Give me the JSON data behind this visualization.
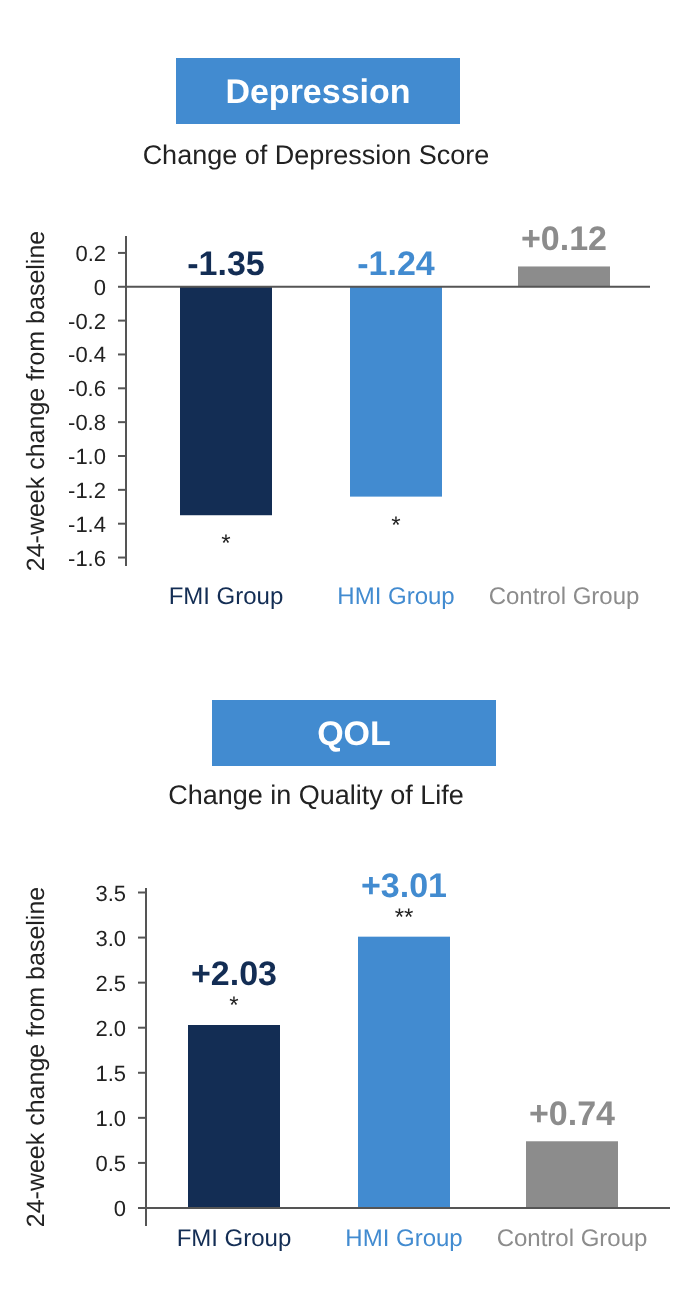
{
  "chart_data": [
    {
      "type": "bar",
      "title": "Depression",
      "subtitle": "Change of Depression Score",
      "ylabel": "24-week change from baseline",
      "categories": [
        "FMI Group",
        "HMI Group",
        "Control Group"
      ],
      "values": [
        -1.35,
        -1.24,
        0.12
      ],
      "colors": [
        "#132d54",
        "#428bd0",
        "#8c8c8c"
      ],
      "value_labels": [
        "-1.35",
        "-1.24",
        "+0.12"
      ],
      "ylim": [
        -1.65,
        0.3
      ],
      "yticks": [
        0.2,
        0,
        -0.2,
        -0.4,
        -0.6,
        -0.8,
        {
          "value": -1,
          "label": "-1.0"
        },
        -1.2,
        -1.4,
        -1.6
      ],
      "annotations": [
        {
          "text": "*",
          "x": "FMI Group",
          "y": -1.35
        },
        {
          "text": "*",
          "x": "HMI Group",
          "y": -1.24
        }
      ]
    },
    {
      "type": "bar",
      "title": "QOL",
      "subtitle": "Change in Quality of Life",
      "ylabel": "24-week change from baseline",
      "categories": [
        "FMI Group",
        "HMI Group",
        "Control Group"
      ],
      "values": [
        2.03,
        3.01,
        0.74
      ],
      "colors": [
        "#132d54",
        "#428bd0",
        "#8c8c8c"
      ],
      "value_labels": [
        "+2.03",
        "+3.01",
        "+0.74"
      ],
      "ylim": [
        -0.2,
        3.55
      ],
      "yticks": [
        0,
        0.5,
        {
          "value": 1,
          "label": "1.0"
        },
        1.5,
        {
          "value": 2,
          "label": "2.0"
        },
        2.5,
        {
          "value": 3,
          "label": "3.0"
        },
        3.5
      ],
      "annotations": [
        {
          "text": "*",
          "x": "FMI Group",
          "y": 2.03
        },
        {
          "text": "**",
          "x": "HMI Group",
          "y": 3.01
        }
      ]
    }
  ]
}
